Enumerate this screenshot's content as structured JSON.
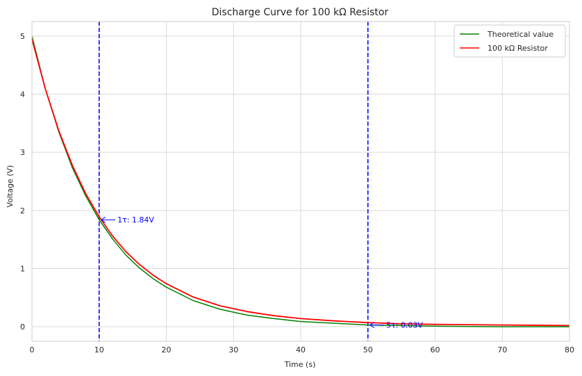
{
  "chart_data": {
    "type": "line",
    "title": "Discharge Curve for 100 kΩ Resistor",
    "xlabel": "Time (s)",
    "ylabel": "Voltage (V)",
    "xlim": [
      0,
      80
    ],
    "ylim": [
      -0.25,
      5.25
    ],
    "x_ticks": [
      0,
      10,
      20,
      30,
      40,
      50,
      60,
      70,
      80
    ],
    "y_ticks": [
      0,
      1,
      2,
      3,
      4,
      5
    ],
    "grid": true,
    "legend_position": "top-right",
    "series": [
      {
        "name": "Theoretical value",
        "color": "#008000",
        "x": [
          0,
          2,
          4,
          6,
          8,
          10,
          12,
          14,
          16,
          18,
          20,
          24,
          28,
          32,
          36,
          40,
          45,
          50,
          55,
          60,
          70,
          80
        ],
        "y": [
          5.0,
          4.09,
          3.35,
          2.74,
          2.25,
          1.84,
          1.51,
          1.23,
          1.01,
          0.83,
          0.68,
          0.45,
          0.3,
          0.2,
          0.14,
          0.09,
          0.06,
          0.03,
          0.02,
          0.01,
          0.0,
          0.0
        ]
      },
      {
        "name": "100 kΩ Resistor",
        "color": "#ff0000",
        "x": [
          0,
          2,
          4,
          6,
          8,
          10,
          12,
          14,
          16,
          18,
          20,
          24,
          28,
          32,
          36,
          40,
          45,
          50,
          55,
          60,
          70,
          80
        ],
        "y": [
          4.95,
          4.09,
          3.37,
          2.78,
          2.29,
          1.89,
          1.56,
          1.29,
          1.07,
          0.89,
          0.74,
          0.51,
          0.36,
          0.26,
          0.19,
          0.14,
          0.1,
          0.07,
          0.05,
          0.04,
          0.03,
          0.02
        ]
      }
    ],
    "vlines": [
      {
        "x": 10,
        "color": "#0000ff",
        "style": "dashed"
      },
      {
        "x": 50,
        "color": "#0000ff",
        "style": "dashed"
      }
    ],
    "annotations": [
      {
        "text": "1τ: 1.84V",
        "x": 10,
        "y": 1.84,
        "text_x": 12,
        "text_y": 1.84,
        "color": "#0000ff"
      },
      {
        "text": "5τ: 0.03V",
        "x": 50,
        "y": 0.03,
        "text_x": 52,
        "text_y": 0.03,
        "color": "#0000ff"
      }
    ]
  }
}
